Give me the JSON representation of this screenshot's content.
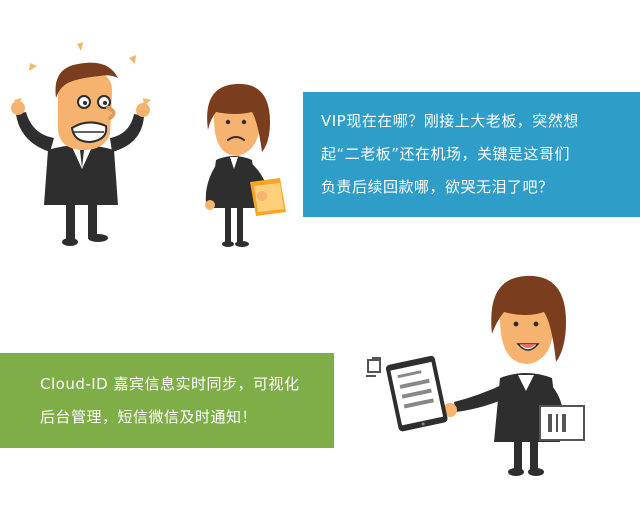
{
  "callouts": {
    "vip": {
      "lines": [
        "VIP现在在哪？刚接上大老板，突然想",
        "起“二老板”还在机场，关键是这哥们",
        "负责后续回款哪，欲哭无泪了吧？"
      ]
    },
    "cloud": {
      "lines": [
        "Cloud-ID 嘉宾信息实时同步，可视化",
        "后台管理，短信微信及时通知！"
      ]
    }
  },
  "colors": {
    "callout_blue": "#2e9dc8",
    "callout_green": "#7fae48",
    "suit": "#2e2e2e",
    "skin": "#f6b36f",
    "hair": "#7a3e1e",
    "folder": "#f7a623",
    "accent_orange": "#f2b66d"
  }
}
